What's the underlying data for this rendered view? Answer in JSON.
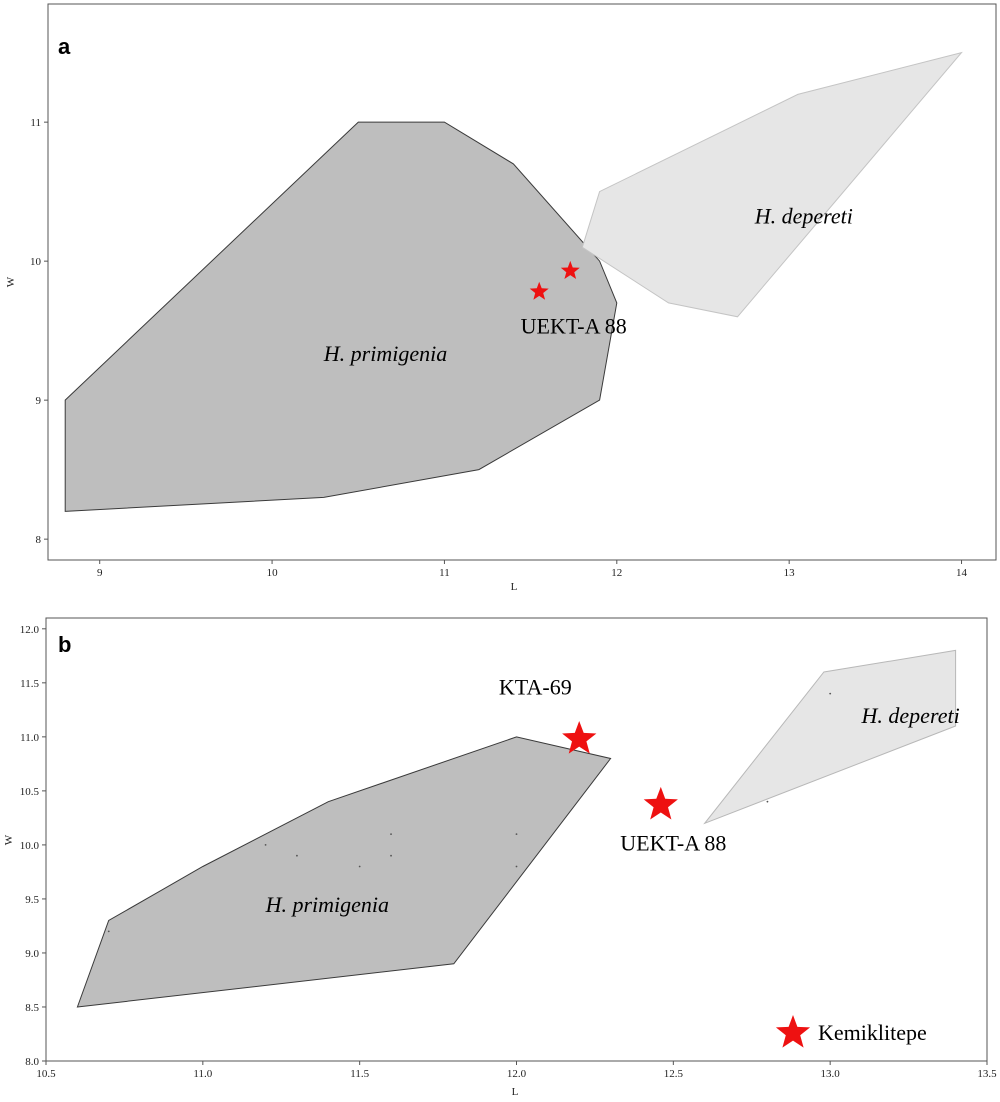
{
  "chart_data": [
    {
      "type": "scatter",
      "panel_label": "a",
      "xlabel": "L",
      "ylabel": "W",
      "xlim": [
        8.7,
        14.2
      ],
      "ylim": [
        7.85,
        11.85
      ],
      "xticks": [
        9,
        10,
        11,
        12,
        13,
        14
      ],
      "yticks": [
        8,
        9,
        10,
        11
      ],
      "tick_decimals": 0,
      "regions": [
        {
          "name": "H. primigenia",
          "fill": "#bebebe",
          "stroke": "#3a3a3a",
          "polygon": [
            [
              8.8,
              8.2
            ],
            [
              10.3,
              8.3
            ],
            [
              11.2,
              8.5
            ],
            [
              11.9,
              9.0
            ],
            [
              12.0,
              9.7
            ],
            [
              11.9,
              10.0
            ],
            [
              11.4,
              10.7
            ],
            [
              11.0,
              11.0
            ],
            [
              10.5,
              11.0
            ],
            [
              8.8,
              9.0
            ]
          ],
          "label_x": 10.3,
          "label_y": 9.28
        },
        {
          "name": "H. depereti",
          "fill": "#e6e6e6",
          "stroke": "#c4c4c4",
          "polygon": [
            [
              11.8,
              10.1
            ],
            [
              12.3,
              9.7
            ],
            [
              12.7,
              9.6
            ],
            [
              14.0,
              11.5
            ],
            [
              13.05,
              11.2
            ],
            [
              11.9,
              10.5
            ]
          ],
          "label_x": 12.8,
          "label_y": 10.27
        }
      ],
      "points": [
        {
          "x": 11.55,
          "y": 9.78,
          "marker": "star",
          "color": "#ee1111",
          "size": 10
        },
        {
          "x": 11.73,
          "y": 9.93,
          "marker": "star",
          "color": "#ee1111",
          "size": 10
        }
      ],
      "annotations": [
        {
          "text": "UEKT-A 88",
          "x": 11.75,
          "y": 9.48
        }
      ],
      "legend": null
    },
    {
      "type": "scatter",
      "panel_label": "b",
      "xlabel": "L",
      "ylabel": "W",
      "xlim": [
        10.5,
        13.5
      ],
      "ylim": [
        8.0,
        12.1
      ],
      "xticks": [
        10.5,
        11.0,
        11.5,
        12.0,
        12.5,
        13.0,
        13.5
      ],
      "yticks": [
        8.0,
        8.5,
        9.0,
        9.5,
        10.0,
        10.5,
        11.0,
        11.5,
        12.0
      ],
      "tick_decimals": 1,
      "regions": [
        {
          "name": "H. primigenia",
          "fill": "#bebebe",
          "stroke": "#3a3a3a",
          "polygon": [
            [
              10.6,
              8.5
            ],
            [
              11.8,
              8.9
            ],
            [
              12.3,
              10.8
            ],
            [
              12.0,
              11.0
            ],
            [
              11.4,
              10.4
            ],
            [
              11.0,
              9.8
            ],
            [
              10.7,
              9.3
            ]
          ],
          "label_x": 11.2,
          "label_y": 9.38
        },
        {
          "name": "H. depereti",
          "fill": "#e6e6e6",
          "stroke": "#b8b8b8",
          "polygon": [
            [
              12.6,
              10.2
            ],
            [
              13.4,
              11.1
            ],
            [
              13.4,
              11.8
            ],
            [
              12.98,
              11.6
            ]
          ],
          "label_x": 13.1,
          "label_y": 11.13
        }
      ],
      "small_points": [
        [
          10.7,
          9.2
        ],
        [
          11.2,
          10.0
        ],
        [
          11.3,
          9.9
        ],
        [
          11.5,
          9.8
        ],
        [
          11.6,
          10.1
        ],
        [
          11.6,
          9.9
        ],
        [
          12.0,
          10.1
        ],
        [
          12.0,
          9.8
        ],
        [
          13.0,
          11.4
        ],
        [
          12.8,
          10.4
        ]
      ],
      "points": [
        {
          "x": 12.2,
          "y": 10.98,
          "marker": "star",
          "color": "#ee1111",
          "size": 18
        },
        {
          "x": 12.46,
          "y": 10.37,
          "marker": "star",
          "color": "#ee1111",
          "size": 18
        }
      ],
      "annotations": [
        {
          "text": "KTA-69",
          "x": 12.06,
          "y": 11.39
        },
        {
          "text": "UEKT-A 88",
          "x": 12.5,
          "y": 9.95
        }
      ],
      "legend": {
        "label": "Kemiklitepe",
        "marker": "star",
        "color": "#ee1111",
        "placement": "bottom-right"
      }
    }
  ]
}
